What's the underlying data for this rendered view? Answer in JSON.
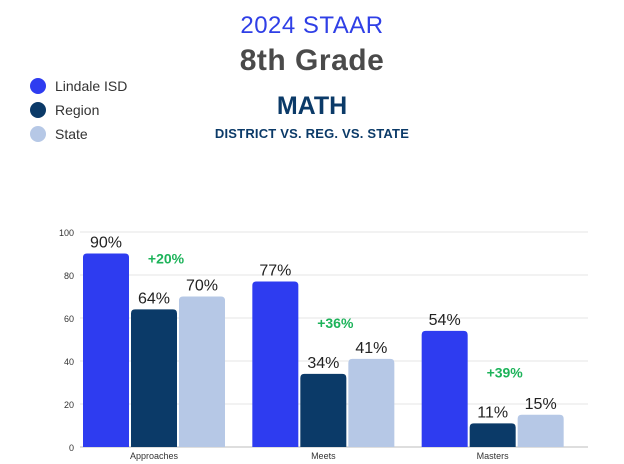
{
  "header": {
    "line1": "2024 STAAR",
    "line2": "8th Grade",
    "line3": "MATH",
    "line4": "DISTRICT VS. REG. VS. STATE"
  },
  "colors": {
    "district": "#2e3cf0",
    "region": "#0b3a68",
    "state": "#b6c8e6",
    "diff": "#1db35a"
  },
  "chart_data": {
    "type": "bar",
    "categories": [
      "Approaches",
      "Meets",
      "Masters"
    ],
    "series": [
      {
        "name": "Lindale ISD",
        "values": [
          90,
          77,
          54
        ],
        "labels": [
          "90%",
          "77%",
          "54%"
        ]
      },
      {
        "name": "Region",
        "values": [
          64,
          34,
          11
        ],
        "labels": [
          "64%",
          "34%",
          "11%"
        ]
      },
      {
        "name": "State",
        "values": [
          70,
          41,
          15
        ],
        "labels": [
          "70%",
          "41%",
          "15%"
        ]
      }
    ],
    "annotations": [
      "+20%",
      "+36%",
      "+39%"
    ],
    "yticks": [
      "0",
      "20",
      "40",
      "60",
      "80",
      "100"
    ],
    "ylim": [
      0,
      100
    ],
    "grid": true,
    "legend_position": "top-left"
  }
}
